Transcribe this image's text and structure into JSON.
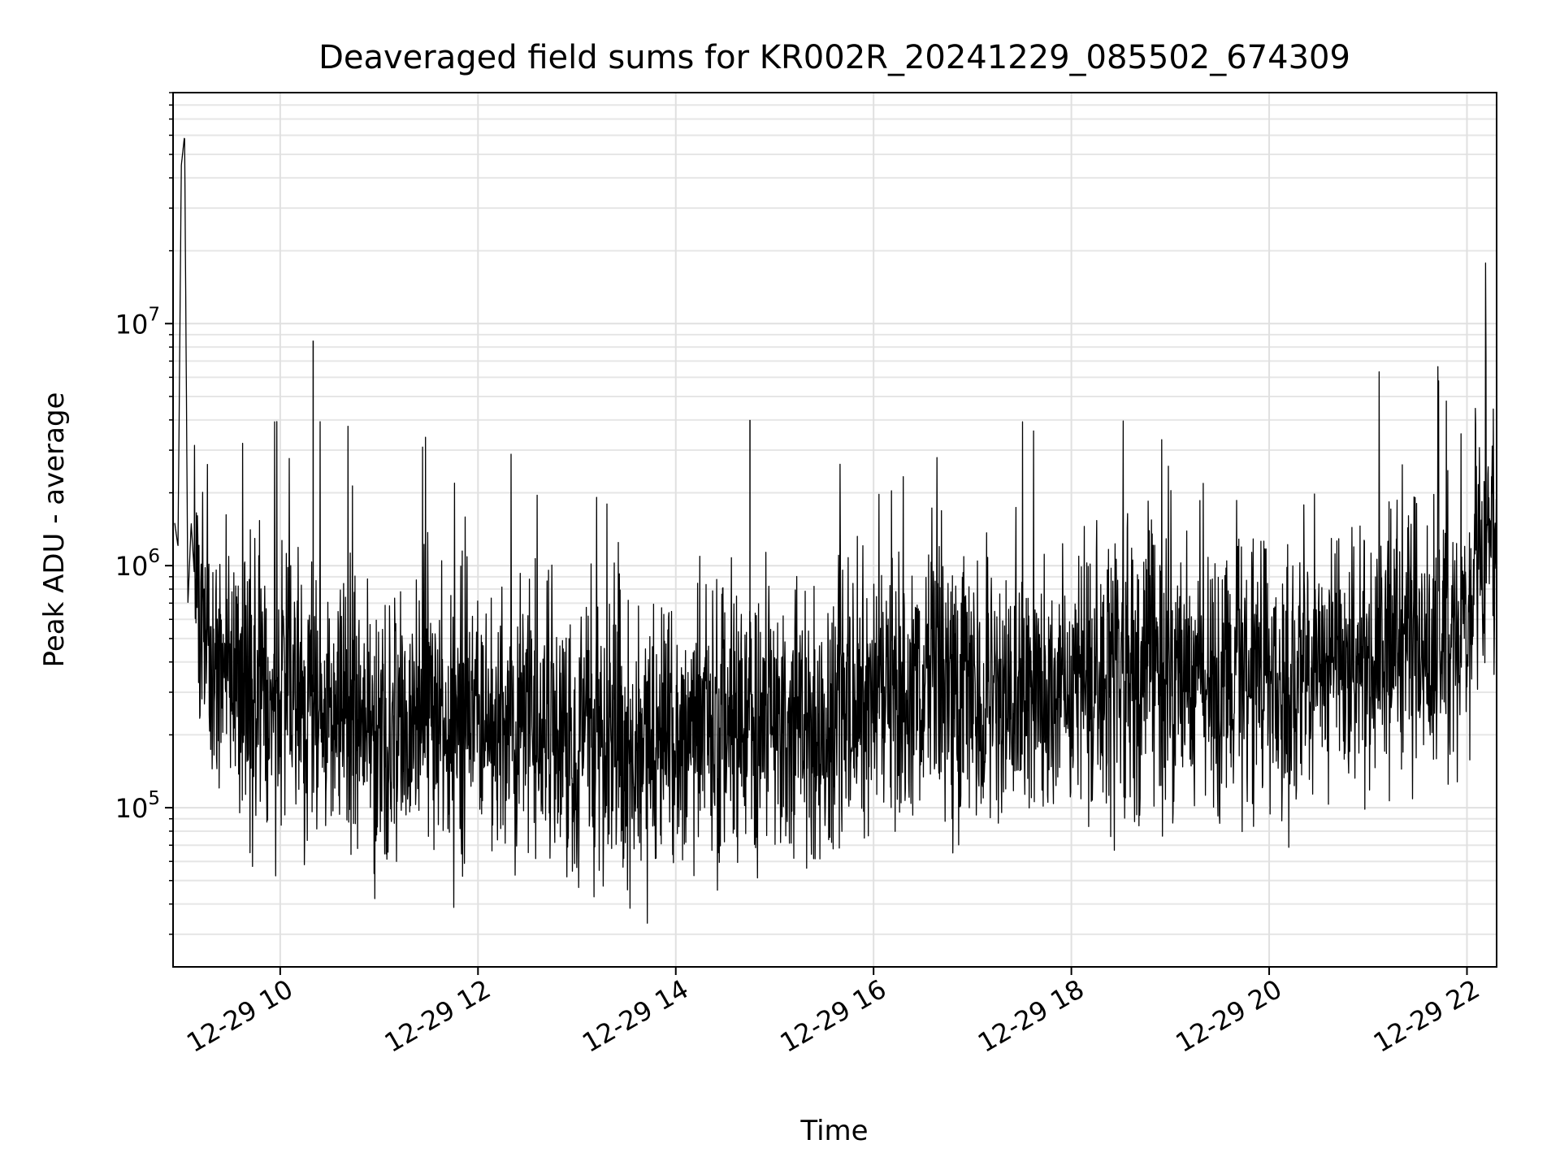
{
  "chart_data": {
    "type": "line",
    "title": "Deaveraged field sums for KR002R_20241229_085502_674309",
    "xlabel": "Time",
    "ylabel": "Peak ADU - average",
    "x_axis": {
      "type": "time",
      "range": [
        "2024-12-29T08:55",
        "2024-12-29T22:18"
      ],
      "ticks": [
        {
          "value": "2024-12-29T10:00",
          "label": "12-29 10"
        },
        {
          "value": "2024-12-29T12:00",
          "label": "12-29 12"
        },
        {
          "value": "2024-12-29T14:00",
          "label": "12-29 14"
        },
        {
          "value": "2024-12-29T16:00",
          "label": "12-29 16"
        },
        {
          "value": "2024-12-29T18:00",
          "label": "12-29 18"
        },
        {
          "value": "2024-12-29T20:00",
          "label": "12-29 20"
        },
        {
          "value": "2024-12-29T22:00",
          "label": "12-29 22"
        }
      ]
    },
    "y_axis": {
      "scale": "log",
      "range": [
        22000,
        90000000
      ],
      "ticks": [
        {
          "value": 100000,
          "base": "10",
          "exp": "5"
        },
        {
          "value": 1000000,
          "base": "10",
          "exp": "6"
        },
        {
          "value": 10000000,
          "base": "10",
          "exp": "7"
        }
      ]
    },
    "grid": true,
    "line_color": "#000000",
    "series": [
      {
        "x": [
          "2024-12-29T08:56",
          "2024-12-29T08:58",
          "2024-12-29T09:00",
          "2024-12-29T09:02",
          "2024-12-29T09:04",
          "2024-12-29T09:06",
          "2024-12-29T09:08",
          "2024-12-29T09:10",
          "2024-12-29T09:15",
          "2024-12-29T09:20",
          "2024-12-29T09:30",
          "2024-12-29T09:40",
          "2024-12-29T09:50",
          "2024-12-29T10:00",
          "2024-12-29T10:10",
          "2024-12-29T10:20",
          "2024-12-29T10:30",
          "2024-12-29T10:40",
          "2024-12-29T10:50",
          "2024-12-29T11:00",
          "2024-12-29T11:15",
          "2024-12-29T11:30",
          "2024-12-29T11:45",
          "2024-12-29T12:00",
          "2024-12-29T12:15",
          "2024-12-29T12:30",
          "2024-12-29T12:45",
          "2024-12-29T13:00",
          "2024-12-29T13:15",
          "2024-12-29T13:30",
          "2024-12-29T13:45",
          "2024-12-29T14:00",
          "2024-12-29T14:15",
          "2024-12-29T14:30",
          "2024-12-29T14:45",
          "2024-12-29T15:00",
          "2024-12-29T15:15",
          "2024-12-29T15:30",
          "2024-12-29T15:45",
          "2024-12-29T16:00",
          "2024-12-29T16:15",
          "2024-12-29T16:30",
          "2024-12-29T16:45",
          "2024-12-29T17:00",
          "2024-12-29T17:15",
          "2024-12-29T17:30",
          "2024-12-29T17:45",
          "2024-12-29T18:00",
          "2024-12-29T18:15",
          "2024-12-29T18:30",
          "2024-12-29T18:45",
          "2024-12-29T19:00",
          "2024-12-29T19:15",
          "2024-12-29T19:30",
          "2024-12-29T19:45",
          "2024-12-29T20:00",
          "2024-12-29T20:15",
          "2024-12-29T20:30",
          "2024-12-29T20:45",
          "2024-12-29T21:00",
          "2024-12-29T21:15",
          "2024-12-29T21:30",
          "2024-12-29T21:45",
          "2024-12-29T22:00",
          "2024-12-29T22:10",
          "2024-12-29T22:18"
        ],
        "y": [
          1500000,
          1200000,
          45000000,
          60000000,
          700000,
          1500000,
          900000,
          600000,
          500000,
          450000,
          350000,
          320000,
          280000,
          300000,
          280000,
          260000,
          250000,
          240000,
          230000,
          220000,
          230000,
          240000,
          230000,
          250000,
          240000,
          230000,
          220000,
          200000,
          190000,
          180000,
          190000,
          200000,
          210000,
          220000,
          230000,
          220000,
          210000,
          230000,
          250000,
          280000,
          300000,
          320000,
          310000,
          300000,
          290000,
          300000,
          310000,
          320000,
          330000,
          340000,
          350000,
          360000,
          370000,
          380000,
          370000,
          360000,
          350000,
          360000,
          380000,
          400000,
          450000,
          500000,
          550000,
          700000,
          1200000,
          1500000
        ]
      }
    ],
    "annotations": [
      {
        "x": "2024-12-29T10:20",
        "y": 8500000,
        "label": ""
      },
      {
        "x": "2024-12-29T14:45",
        "y": 4000000,
        "label": ""
      }
    ]
  }
}
